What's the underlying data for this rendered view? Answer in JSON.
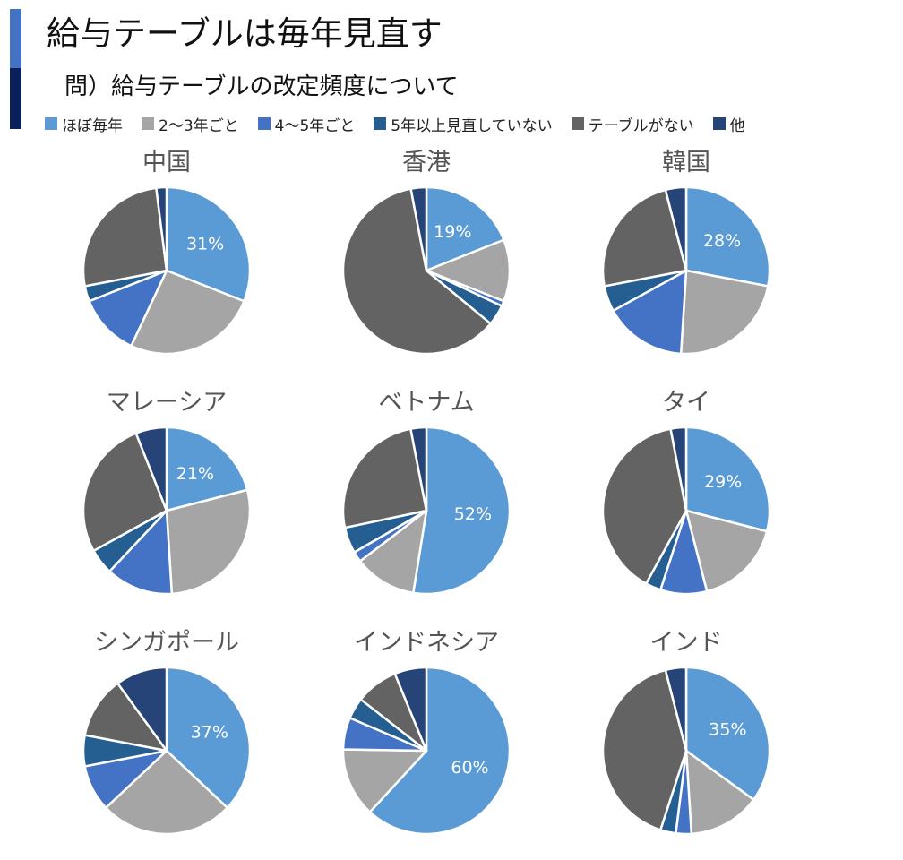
{
  "header": {
    "title": "給与テーブルは毎年見直す",
    "subtitle": "問）給与テーブルの改定頻度について",
    "accent_colors": [
      "#4472c4",
      "#0b1f5c"
    ]
  },
  "chart_data": {
    "type": "pie",
    "legend_position": "top",
    "categories": [
      {
        "label": "ほぼ毎年",
        "color": "#5b9bd5"
      },
      {
        "label": "2〜3年ごと",
        "color": "#a5a5a5"
      },
      {
        "label": "4〜5年ごと",
        "color": "#4472c4"
      },
      {
        "label": "5年以上見直していない",
        "color": "#255e91"
      },
      {
        "label": "テーブルがない",
        "color": "#636363"
      },
      {
        "label": "他",
        "color": "#264478"
      }
    ],
    "charts": [
      {
        "title": "中国",
        "values": [
          31,
          26,
          12,
          3,
          26,
          2
        ],
        "data_label": "31%"
      },
      {
        "title": "香港",
        "values": [
          19,
          12,
          1,
          4,
          61,
          3
        ],
        "data_label": "19%"
      },
      {
        "title": "韓国",
        "values": [
          28,
          23,
          16,
          5,
          24,
          4
        ],
        "data_label": "28%"
      },
      {
        "title": "マレーシア",
        "values": [
          21,
          28,
          13,
          5,
          27,
          6
        ],
        "data_label": "21%"
      },
      {
        "title": "ベトナム",
        "values": [
          52,
          12,
          2,
          5,
          25,
          3
        ],
        "data_label": "52%"
      },
      {
        "title": "タイ",
        "values": [
          29,
          17,
          9,
          3,
          39,
          3
        ],
        "data_label": "29%"
      },
      {
        "title": "シンガポール",
        "values": [
          37,
          26,
          9,
          6,
          12,
          10
        ],
        "data_label": "37%"
      },
      {
        "title": "インドネシア",
        "values": [
          60,
          13,
          6,
          4,
          8,
          6
        ],
        "data_label": "60%"
      },
      {
        "title": "インド",
        "values": [
          35,
          14,
          3,
          3,
          41,
          4
        ],
        "data_label": "35%"
      }
    ]
  }
}
